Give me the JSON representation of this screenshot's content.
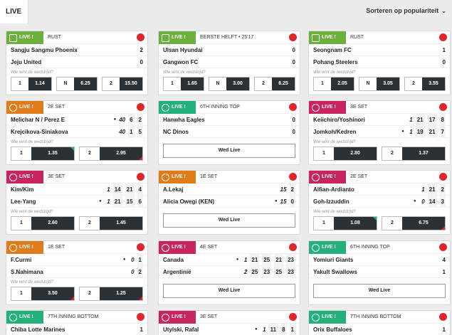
{
  "header": {
    "tab_label": "LIVE",
    "sort_label": "Sorteren op populariteit"
  },
  "colors": {
    "soccer": "#6ab03a",
    "tennis": "#e07b1a",
    "baseball": "#23b07a",
    "badminton": "#c8245f",
    "volleyball": "#c8245f",
    "odds_dark": "#2b3135",
    "up": "#19b36b",
    "down": "#e0262b"
  },
  "common": {
    "live": "LIVE !",
    "question": "Wie wint de wedstrijd?",
    "wed_live": "Wed Live"
  },
  "cards": [
    {
      "sport": "soccer",
      "status": "RUST",
      "teams": [
        {
          "name": "Sangju Sangmu Phoenix",
          "score": "2"
        },
        {
          "name": "Jeju United",
          "score": "0"
        }
      ],
      "odds": [
        {
          "l": "1",
          "v": "1.14"
        },
        {
          "l": "N",
          "v": "6.25"
        },
        {
          "l": "2",
          "v": "15.50"
        }
      ]
    },
    {
      "sport": "soccer",
      "status": "EERSTE HELFT • 25'17",
      "teams": [
        {
          "name": "Ulsan Hyundai",
          "score": "0"
        },
        {
          "name": "Gangwon FC",
          "score": "0"
        }
      ],
      "odds": [
        {
          "l": "1",
          "v": "1.65"
        },
        {
          "l": "N",
          "v": "3.00"
        },
        {
          "l": "2",
          "v": "6.25"
        }
      ]
    },
    {
      "sport": "soccer",
      "status": "RUST",
      "teams": [
        {
          "name": "Seongnam FC",
          "score": "1"
        },
        {
          "name": "Pohang Steelers",
          "score": "0"
        }
      ],
      "odds": [
        {
          "l": "1",
          "v": "2.05"
        },
        {
          "l": "N",
          "v": "3.05"
        },
        {
          "l": "2",
          "v": "3.55"
        }
      ]
    },
    {
      "sport": "tennis",
      "status": "2E SET",
      "teams": [
        {
          "name": "Melichar N / Perez E",
          "cur": "40",
          "sets": [
            "6",
            "2"
          ],
          "serve": true
        },
        {
          "name": "Krejcikova-Siniakova",
          "cur": "40",
          "sets": [
            "1",
            "5"
          ]
        }
      ],
      "odds": [
        {
          "l": "1",
          "v": "1.35",
          "up": true
        },
        {
          "l": "2",
          "v": "2.95",
          "down": true
        }
      ]
    },
    {
      "sport": "baseball",
      "status": "6TH INNING TOP",
      "teams": [
        {
          "name": "Hanwha Eagles",
          "score": "0"
        },
        {
          "name": "NC Dinos",
          "score": "0"
        }
      ],
      "wed": true
    },
    {
      "sport": "badminton",
      "status": "3E SET",
      "teams": [
        {
          "name": "Keiichiro/Yoshinori",
          "cur": "1",
          "sets": [
            "21",
            "17",
            "8"
          ]
        },
        {
          "name": "Jomkoh/Kedren",
          "cur": "1",
          "sets": [
            "19",
            "21",
            "7"
          ],
          "serve": true
        }
      ],
      "odds": [
        {
          "l": "1",
          "v": "2.80"
        },
        {
          "l": "2",
          "v": "1.37"
        }
      ]
    },
    {
      "sport": "badminton",
      "status": "3E SET",
      "teams": [
        {
          "name": "Kim/Kim",
          "cur": "1",
          "sets": [
            "14",
            "21",
            "4"
          ]
        },
        {
          "name": "Lee-Yang",
          "cur": "1",
          "sets": [
            "21",
            "15",
            "6"
          ],
          "serve": true
        }
      ],
      "odds": [
        {
          "l": "1",
          "v": "2.60"
        },
        {
          "l": "2",
          "v": "1.45"
        }
      ]
    },
    {
      "sport": "tennis",
      "status": "1E SET",
      "teams": [
        {
          "name": "A.Lekaj",
          "cur": "15",
          "sets": [
            "2"
          ]
        },
        {
          "name": "Alicia Owegi (KEN)",
          "cur": "15",
          "sets": [
            "0"
          ],
          "serve": true
        }
      ],
      "wed": true
    },
    {
      "sport": "badminton",
      "status": "2E SET",
      "teams": [
        {
          "name": "Alfian-Ardianto",
          "cur": "1",
          "sets": [
            "21",
            "2"
          ]
        },
        {
          "name": "Goh-Izzuddin",
          "cur": "0",
          "sets": [
            "14",
            "3"
          ],
          "serve": true
        }
      ],
      "odds": [
        {
          "l": "1",
          "v": "1.08",
          "up": true
        },
        {
          "l": "2",
          "v": "6.75",
          "down": true
        }
      ]
    },
    {
      "sport": "tennis",
      "status": "1E SET",
      "teams": [
        {
          "name": "F.Curmi",
          "cur": "0",
          "sets": [
            "1"
          ],
          "serve": true
        },
        {
          "name": "S.Nahimana",
          "cur": "0",
          "sets": [
            "2"
          ]
        }
      ],
      "odds": [
        {
          "l": "1",
          "v": "3.50",
          "down": true
        },
        {
          "l": "2",
          "v": "1.25",
          "down": true
        }
      ]
    },
    {
      "sport": "volleyball",
      "status": "4E SET",
      "teams": [
        {
          "name": "Canada",
          "cur": "1",
          "sets": [
            "21",
            "25",
            "21",
            "23"
          ],
          "serve": true
        },
        {
          "name": "Argentinië",
          "cur": "2",
          "sets": [
            "25",
            "23",
            "25",
            "23"
          ]
        }
      ],
      "wed": true
    },
    {
      "sport": "baseball",
      "status": "6TH INNING TOP",
      "teams": [
        {
          "name": "Yomiuri Giants",
          "score": "4"
        },
        {
          "name": "Yakult Swallows",
          "score": "1"
        }
      ],
      "wed": true
    },
    {
      "sport": "baseball",
      "status": "7TH INNING BOTTOM",
      "teams": [
        {
          "name": "Chiba Lotte Marines",
          "score": "1"
        }
      ]
    },
    {
      "sport": "badminton",
      "status": "3E SET",
      "teams": [
        {
          "name": "Utylski, Rafal",
          "cur": "1",
          "sets": [
            "11",
            "8",
            "1"
          ],
          "serve": true
        }
      ]
    },
    {
      "sport": "baseball",
      "status": "7TH INNING BOTTOM",
      "teams": [
        {
          "name": "Orix Buffaloes",
          "score": "1"
        }
      ]
    }
  ]
}
